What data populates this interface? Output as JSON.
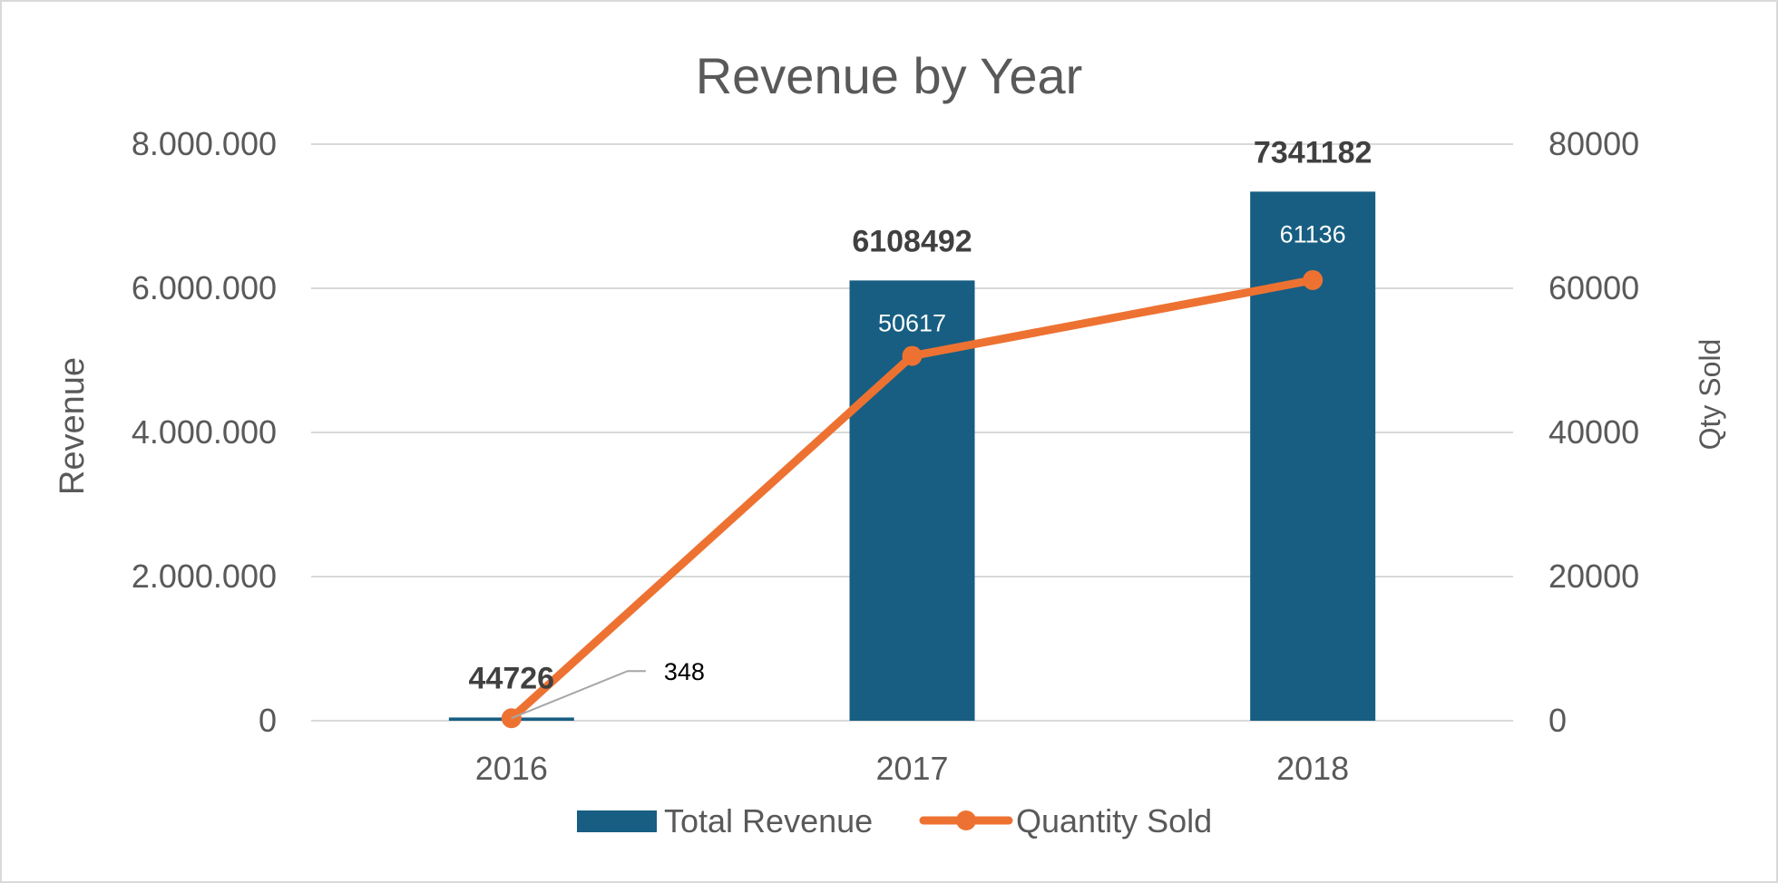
{
  "chart_data": {
    "type": "bar",
    "title": "Revenue by Year",
    "categories": [
      "2016",
      "2017",
      "2018"
    ],
    "series": [
      {
        "name": "Total Revenue",
        "type": "bar",
        "axis": "left",
        "color": "#175E82",
        "values": [
          44726,
          6108492,
          7341182
        ],
        "labels": [
          "44726",
          "6108492",
          "7341182"
        ]
      },
      {
        "name": "Quantity Sold",
        "type": "line",
        "axis": "right",
        "color": "#ED7232",
        "values": [
          348,
          50617,
          61136
        ],
        "labels": [
          "348",
          "50617",
          "61136"
        ]
      }
    ],
    "ylabel": "Revenue",
    "ylabel_right": "Qty Sold",
    "ylim": [
      0,
      8000000
    ],
    "ylim_right": [
      0,
      80000
    ],
    "yticks": [
      0,
      2000000,
      4000000,
      6000000,
      8000000
    ],
    "ytick_labels": [
      "0",
      "2.000.000",
      "4.000.000",
      "6.000.000",
      "8.000.000"
    ],
    "yticks_right": [
      0,
      20000,
      40000,
      60000,
      80000
    ],
    "ytick_labels_right": [
      "0",
      "20000",
      "40000",
      "60000",
      "80000"
    ],
    "grid": true,
    "legend_position": "bottom"
  }
}
